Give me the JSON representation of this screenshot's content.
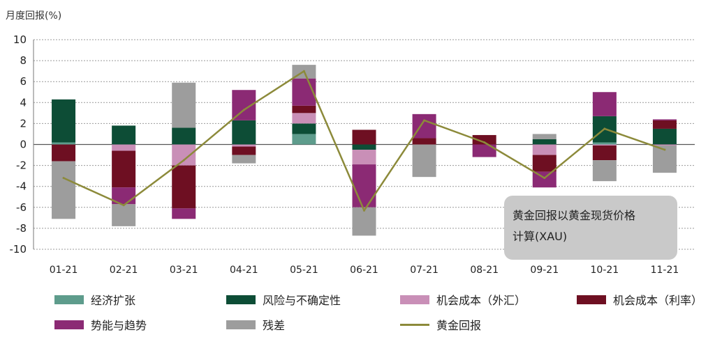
{
  "chart_data": {
    "type": "bar",
    "subtype": "stacked-bar-with-line",
    "ylabel": "月度回报(%)",
    "ylim": [
      -10,
      10
    ],
    "yticks": [
      10,
      8,
      6,
      4,
      2,
      0,
      -2,
      -4,
      -6,
      -8,
      -10
    ],
    "categories": [
      "01-21",
      "02-21",
      "03-21",
      "04-21",
      "05-21",
      "06-21",
      "07-21",
      "08-21",
      "09-21",
      "10-21",
      "11-21"
    ],
    "series": [
      {
        "name": "经济扩张",
        "color": "#5e9c8c",
        "values": [
          0.2,
          0,
          0,
          0,
          1.0,
          0,
          0,
          0,
          0,
          0.2,
          0
        ]
      },
      {
        "name": "风险与不确定性",
        "color": "#0d4d36",
        "values": [
          4.1,
          1.8,
          1.6,
          2.3,
          1.0,
          -0.5,
          0,
          0,
          0.5,
          2.5,
          1.5
        ]
      },
      {
        "name": "机会成本（外汇）",
        "color": "#c98fb7",
        "values": [
          0,
          -0.6,
          -2.0,
          -0.2,
          1.0,
          -1.4,
          0,
          0,
          -1.0,
          -0.1,
          -0.1
        ]
      },
      {
        "name": "机会成本（利率）",
        "color": "#6e0f22",
        "values": [
          -1.6,
          -3.5,
          -4.1,
          -0.8,
          0.7,
          1.4,
          0.6,
          0.9,
          -1.6,
          -1.4,
          0.8
        ]
      },
      {
        "name": "势能与趋势",
        "color": "#8b2a74",
        "values": [
          0,
          -1.6,
          -1.0,
          2.9,
          2.6,
          -4.1,
          2.3,
          -1.2,
          -1.5,
          2.3,
          0.1
        ]
      },
      {
        "name": "残差",
        "color": "#9d9d9d",
        "values": [
          -5.5,
          -2.1,
          4.3,
          -0.8,
          1.3,
          -2.7,
          -3.1,
          0,
          0.5,
          -2.0,
          -2.6
        ]
      }
    ],
    "line": {
      "name": "黄金回报",
      "color": "#8c8a3a",
      "values": [
        -3.2,
        -5.8,
        -1.5,
        3.3,
        7.0,
        -6.3,
        2.3,
        0.2,
        -3.2,
        1.5,
        -0.5
      ]
    },
    "annotation": {
      "line1": "黄金回报以黄金现货价格",
      "line2": "计算(XAU)"
    },
    "legend": [
      {
        "label": "经济扩张",
        "color": "#5e9c8c",
        "kind": "bar"
      },
      {
        "label": "风险与不确定性",
        "color": "#0d4d36",
        "kind": "bar"
      },
      {
        "label": "机会成本（外汇）",
        "color": "#c98fb7",
        "kind": "bar"
      },
      {
        "label": "机会成本（利率）",
        "color": "#6e0f22",
        "kind": "bar"
      },
      {
        "label": "势能与趋势",
        "color": "#8b2a74",
        "kind": "bar"
      },
      {
        "label": "残差",
        "color": "#9d9d9d",
        "kind": "bar"
      },
      {
        "label": "黄金回报",
        "color": "#8c8a3a",
        "kind": "line"
      }
    ],
    "grid": true,
    "legend_position": "bottom"
  }
}
